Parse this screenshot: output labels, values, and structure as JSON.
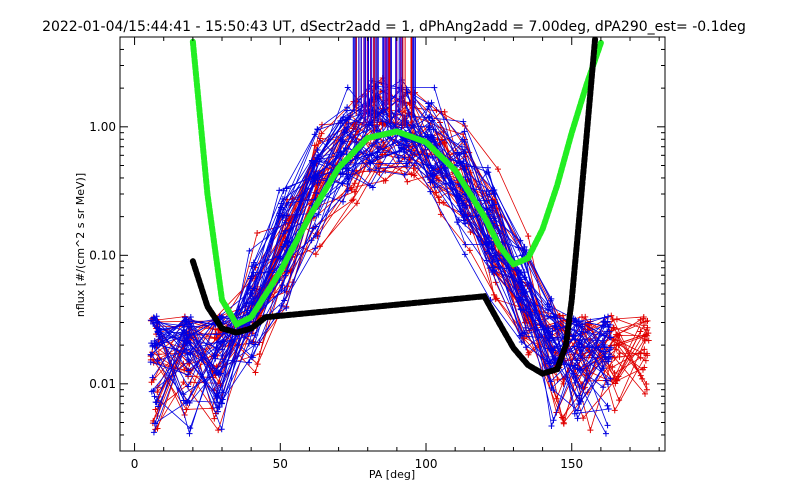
{
  "header": {
    "title": "2022-01-04/15:44:41 - 15:50:43 UT, dSectr2add = 1, dPhAng2add = 7.00deg, dPA290_est=  -0.1deg"
  },
  "colors": {
    "red": "#e00000",
    "blue": "#0000e0",
    "purple": "#7a00a8",
    "green": "#22ee22",
    "black": "#000000"
  },
  "chart_data": {
    "type": "line",
    "title": "2022-01-04/15:44:41 - 15:50:43 UT, dSectr2add = 1, dPhAng2add = 7.00deg, dPA290_est=  -0.1deg",
    "xlabel": "PA [deg]",
    "ylabel": "nflux [#/(cm^2 s sr MeV)]",
    "xlim": [
      -5,
      182
    ],
    "ylim": [
      0.003,
      5.0
    ],
    "yscale": "log",
    "xticks": [
      0,
      50,
      100,
      150
    ],
    "xtick_labels": [
      "0",
      "50",
      "100",
      "150"
    ],
    "yticks": [
      0.01,
      0.1,
      1.0
    ],
    "ytick_labels": [
      "0.01",
      "0.10",
      "1.00"
    ],
    "grid": false,
    "series": [
      {
        "color": "green",
        "style": "thick-dashed",
        "x": [
          20,
          25,
          30,
          35,
          40,
          50,
          60,
          70,
          80,
          90,
          100,
          110,
          120,
          125,
          130,
          135,
          140,
          145,
          150,
          155,
          160
        ],
        "y": [
          4.6,
          0.3,
          0.045,
          0.029,
          0.033,
          0.075,
          0.2,
          0.48,
          0.82,
          0.92,
          0.76,
          0.46,
          0.2,
          0.12,
          0.085,
          0.095,
          0.16,
          0.35,
          0.9,
          2.1,
          4.5
        ]
      },
      {
        "color": "black",
        "style": "thick-dashed",
        "x": [
          20,
          25,
          30,
          35,
          40,
          45,
          120,
          125,
          130,
          135,
          140,
          145,
          148,
          150,
          152,
          155,
          158
        ],
        "y": [
          0.09,
          0.04,
          0.027,
          0.025,
          0.027,
          0.033,
          0.048,
          0.03,
          0.019,
          0.014,
          0.012,
          0.013,
          0.02,
          0.045,
          0.14,
          0.8,
          4.8
        ]
      }
    ],
    "scatter_envelope": {
      "red_angles": [
        7,
        18,
        28,
        42,
        53,
        63,
        75,
        85,
        95,
        105,
        114,
        124,
        135,
        146,
        155,
        165,
        175
      ],
      "blue_angles": [
        7,
        18,
        29,
        40,
        51,
        62,
        72,
        82,
        92,
        102,
        112,
        122,
        133,
        143,
        152,
        162
      ],
      "peak_flux": 0.9,
      "peak_angle": 88
    }
  }
}
